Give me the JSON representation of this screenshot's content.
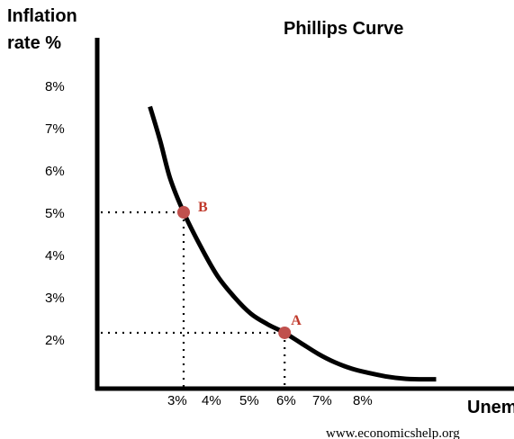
{
  "chart_data": {
    "type": "line",
    "title": "Phillips Curve",
    "ylabel_lines": [
      "Inflation",
      "rate %"
    ],
    "xlabel": "Unem",
    "x_ticks": [
      "3%",
      "4%",
      "5%",
      "6%",
      "7%",
      "8%"
    ],
    "y_ticks": [
      "2%",
      "3%",
      "4%",
      "5%",
      "6%",
      "7%",
      "8%"
    ],
    "series": [
      {
        "x": [
          2.0,
          2.3,
          2.6,
          3.0,
          3.5,
          4.0,
          4.5,
          5.0,
          5.5,
          6.0,
          6.5,
          7.0,
          7.5,
          8.0,
          8.5,
          9.0,
          9.5,
          10.0,
          10.5
        ],
        "y": [
          7.5,
          6.7,
          5.8,
          5.0,
          4.2,
          3.5,
          3.0,
          2.6,
          2.35,
          2.15,
          1.9,
          1.65,
          1.45,
          1.3,
          1.2,
          1.12,
          1.07,
          1.05,
          1.05
        ]
      }
    ],
    "points": [
      {
        "label": "B",
        "x": 3.0,
        "y": 5.0
      },
      {
        "label": "A",
        "x": 6.0,
        "y": 2.15
      }
    ],
    "grid": false,
    "colors": {
      "curve": "#000000",
      "point": "#c0504d",
      "point_label": "#c0392b"
    }
  },
  "watermark": "www.economicshelp.org"
}
